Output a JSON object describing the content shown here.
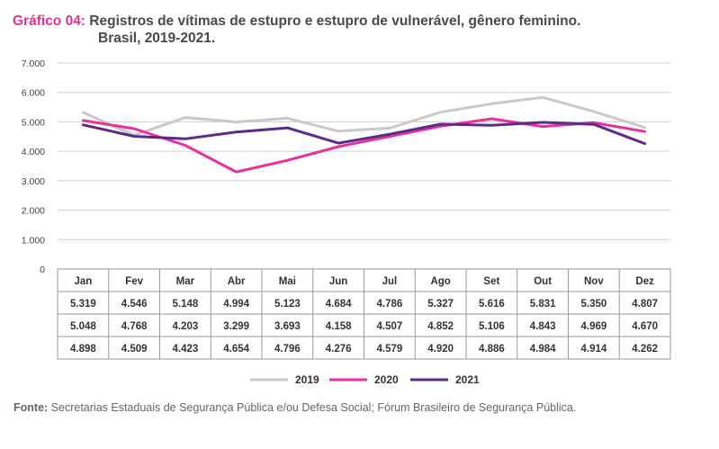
{
  "header": {
    "label": "Gráfico 04:",
    "title_line1": "Registros de vítimas de estupro e estupro de vulnerável, gênero feminino.",
    "title_line2": "Brasil, 2019-2021."
  },
  "footer": {
    "source_label": "Fonte:",
    "source_text": "Secretarias Estaduais de Segurança Pública e/ou Defesa Social; Fórum Brasileiro de Segurança Pública."
  },
  "chart_data": {
    "type": "line",
    "title": "Registros de vítimas de estupro e estupro de vulnerável, gênero feminino. Brasil, 2019-2021.",
    "categories": [
      "Jan",
      "Fev",
      "Mar",
      "Abr",
      "Mai",
      "Jun",
      "Jul",
      "Ago",
      "Set",
      "Out",
      "Nov",
      "Dez"
    ],
    "yticks": [
      "0",
      "1.000",
      "2.000",
      "3.000",
      "4.000",
      "5.000",
      "6.000",
      "7.000"
    ],
    "ylim": [
      0,
      7000
    ],
    "grid": true,
    "legend_position": "bottom",
    "series": [
      {
        "name": "2019",
        "color": "#c9c9c9",
        "values": [
          5319,
          4546,
          5148,
          4994,
          5123,
          4684,
          4786,
          5327,
          5616,
          5831,
          5350,
          4807
        ],
        "labels": [
          "5.319",
          "4.546",
          "5.148",
          "4.994",
          "5.123",
          "4.684",
          "4.786",
          "5.327",
          "5.616",
          "5.831",
          "5.350",
          "4.807"
        ]
      },
      {
        "name": "2020",
        "color": "#e8319a",
        "values": [
          5048,
          4768,
          4203,
          3299,
          3693,
          4158,
          4507,
          4852,
          5106,
          4843,
          4969,
          4670
        ],
        "labels": [
          "5.048",
          "4.768",
          "4.203",
          "3.299",
          "3.693",
          "4.158",
          "4.507",
          "4.852",
          "5.106",
          "4.843",
          "4.969",
          "4.670"
        ]
      },
      {
        "name": "2021",
        "color": "#5b2a8c",
        "values": [
          4898,
          4509,
          4423,
          4654,
          4796,
          4276,
          4579,
          4920,
          4886,
          4984,
          4914,
          4262
        ],
        "labels": [
          "4.898",
          "4.509",
          "4.423",
          "4.654",
          "4.796",
          "4.276",
          "4.579",
          "4.920",
          "4.886",
          "4.984",
          "4.914",
          "4.262"
        ]
      }
    ]
  }
}
